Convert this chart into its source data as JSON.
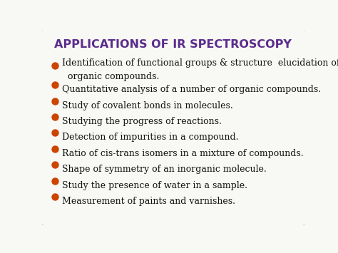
{
  "title": "APPLICATIONS OF IR SPECTROSCOPY",
  "title_color": "#5B2C8D",
  "title_fontsize": 11.5,
  "bullet_color": "#CC4400",
  "text_color": "#111111",
  "background_color": "#F8F8F4",
  "border_color": "#BBBBBB",
  "bullet_items": [
    [
      "Identification of functional groups & structure  elucidation of",
      "organic compounds."
    ],
    [
      "Quantitative analysis of a number of organic compounds."
    ],
    [
      "Study of covalent bonds in molecules."
    ],
    [
      "Studying the progress of reactions."
    ],
    [
      "Detection of impurities in a compound."
    ],
    [
      "Ratio of cis-trans isomers in a mixture of compounds."
    ],
    [
      "Shape of symmetry of an inorganic molecule."
    ],
    [
      "Study the presence of water in a sample."
    ],
    [
      "Measurement of paints and varnishes."
    ]
  ],
  "text_fontsize": 9.0,
  "figsize": [
    4.74,
    3.55
  ],
  "dpi": 100
}
